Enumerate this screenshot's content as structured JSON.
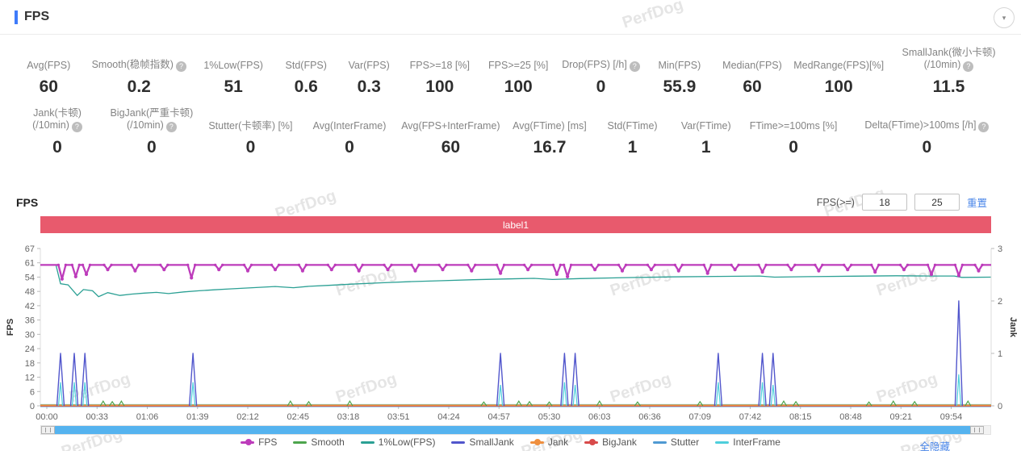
{
  "header": {
    "title": "FPS"
  },
  "stats_row1": [
    {
      "label": "Avg(FPS)",
      "value": "60",
      "help": false
    },
    {
      "label": "Smooth(稳帧指数)",
      "value": "0.2",
      "help": true
    },
    {
      "label": "1%Low(FPS)",
      "value": "51",
      "help": false
    },
    {
      "label": "Std(FPS)",
      "value": "0.6",
      "help": false
    },
    {
      "label": "Var(FPS)",
      "value": "0.3",
      "help": false
    },
    {
      "label": "FPS>=18 [%]",
      "value": "100",
      "help": false
    },
    {
      "label": "FPS>=25 [%]",
      "value": "100",
      "help": false
    },
    {
      "label": "Drop(FPS) [/h]",
      "value": "0",
      "help": true
    },
    {
      "label": "Min(FPS)",
      "value": "55.9",
      "help": false
    },
    {
      "label": "Median(FPS)",
      "value": "60",
      "help": false
    },
    {
      "label": "MedRange(FPS)[%]",
      "value": "100",
      "help": false
    },
    {
      "label": "SmallJank(微小卡顿)\n(/10min)",
      "value": "11.5",
      "help": true
    }
  ],
  "stats_row2": [
    {
      "label": "Jank(卡顿)\n(/10min)",
      "value": "0",
      "help": true
    },
    {
      "label": "BigJank(严重卡顿)\n(/10min)",
      "value": "0",
      "help": true
    },
    {
      "label": "Stutter(卡顿率) [%]",
      "value": "0",
      "help": false
    },
    {
      "label": "Avg(InterFrame)",
      "value": "0",
      "help": false
    },
    {
      "label": "Avg(FPS+InterFrame)",
      "value": "60",
      "help": false
    },
    {
      "label": "Avg(FTime) [ms]",
      "value": "16.7",
      "help": false
    },
    {
      "label": "Std(FTime)",
      "value": "1",
      "help": false
    },
    {
      "label": "Var(FTime)",
      "value": "1",
      "help": false
    },
    {
      "label": "FTime>=100ms [%]",
      "value": "0",
      "help": false
    },
    {
      "label": "Delta(FTime)>100ms [/h]",
      "value": "0",
      "help": true
    }
  ],
  "chart_controls": {
    "section_title": "FPS",
    "fps_ge_label": "FPS(>=)",
    "input1": "18",
    "input2": "25",
    "reset_label": "重置"
  },
  "banner": {
    "text": "label1",
    "color": "#e85a6d"
  },
  "footer": {
    "hide_all": "全隐藏"
  },
  "watermark_text": "PerfDog",
  "chart_data": {
    "type": "line",
    "title": "FPS",
    "x_axis": {
      "tick_labels": [
        "00:00",
        "00:33",
        "01:06",
        "01:39",
        "02:12",
        "02:45",
        "03:18",
        "03:51",
        "04:24",
        "04:57",
        "05:30",
        "06:03",
        "06:36",
        "07:09",
        "07:42",
        "08:15",
        "08:48",
        "09:21",
        "09:54"
      ],
      "tick_interval_seconds": 33,
      "t_max_seconds": 620
    },
    "left_axis": {
      "label": "FPS",
      "tick_labels": [
        67,
        61,
        54,
        48,
        42,
        36,
        30,
        24,
        18,
        12,
        6,
        0
      ],
      "range": [
        0,
        67
      ]
    },
    "right_axis": {
      "label": "Jank",
      "tick_labels": [
        3,
        2,
        1,
        0
      ],
      "range": [
        0,
        3
      ]
    },
    "grid": false,
    "legend_position": "bottom",
    "series": [
      {
        "name": "FPS",
        "color": "#bd3cbb",
        "axis": "left",
        "baseline": 60,
        "dips": [
          [
            10,
            54
          ],
          [
            19,
            55
          ],
          [
            26,
            56
          ],
          [
            40,
            58
          ],
          [
            58,
            57.5
          ],
          [
            77,
            58
          ],
          [
            95,
            54.5
          ],
          [
            113,
            58
          ],
          [
            132,
            57.5
          ],
          [
            150,
            58
          ],
          [
            168,
            57.5
          ],
          [
            187,
            58
          ],
          [
            205,
            57.5
          ],
          [
            224,
            58
          ],
          [
            242,
            57.5
          ],
          [
            260,
            58
          ],
          [
            279,
            57.5
          ],
          [
            298,
            56.5
          ],
          [
            316,
            58
          ],
          [
            335,
            56
          ],
          [
            342,
            55
          ],
          [
            360,
            58
          ],
          [
            378,
            57.5
          ],
          [
            397,
            58
          ],
          [
            415,
            57.5
          ],
          [
            434,
            56.5
          ],
          [
            452,
            58
          ],
          [
            470,
            57
          ],
          [
            489,
            58
          ],
          [
            507,
            57.5
          ],
          [
            526,
            58
          ],
          [
            544,
            57
          ],
          [
            563,
            58
          ],
          [
            581,
            56
          ],
          [
            599,
            55.5
          ],
          [
            612,
            57.5
          ]
        ]
      },
      {
        "name": "Smooth",
        "color": "#4da54d",
        "axis": "left",
        "spikes": [
          [
            37,
            2
          ],
          [
            43,
            1.8
          ],
          [
            49,
            2
          ],
          [
            160,
            2
          ],
          [
            172,
            1.8
          ],
          [
            199,
            2
          ],
          [
            287,
            1.6
          ],
          [
            310,
            2
          ],
          [
            317,
            1.8
          ],
          [
            330,
            1.6
          ],
          [
            363,
            2
          ],
          [
            388,
            1.6
          ],
          [
            429,
            1.8
          ],
          [
            484,
            2
          ],
          [
            492,
            1.8
          ],
          [
            540,
            1.6
          ],
          [
            556,
            2
          ],
          [
            570,
            1.8
          ],
          [
            605,
            2
          ]
        ]
      },
      {
        "name": "1%Low(FPS)",
        "color": "#2ba094",
        "axis": "left",
        "points": [
          [
            0,
            60
          ],
          [
            6,
            60
          ],
          [
            9,
            52
          ],
          [
            14,
            51.5
          ],
          [
            20,
            47
          ],
          [
            24,
            49.5
          ],
          [
            30,
            49
          ],
          [
            34,
            46.5
          ],
          [
            40,
            48.2
          ],
          [
            48,
            47
          ],
          [
            56,
            47.6
          ],
          [
            64,
            48
          ],
          [
            72,
            48.3
          ],
          [
            80,
            47.8
          ],
          [
            90,
            48.5
          ],
          [
            100,
            49
          ],
          [
            110,
            49.4
          ],
          [
            120,
            49.8
          ],
          [
            135,
            50.3
          ],
          [
            150,
            50.8
          ],
          [
            162,
            50.3
          ],
          [
            172,
            50.9
          ],
          [
            185,
            51.3
          ],
          [
            200,
            51.8
          ],
          [
            220,
            52.4
          ],
          [
            240,
            52.9
          ],
          [
            260,
            53.3
          ],
          [
            280,
            53.7
          ],
          [
            300,
            54
          ],
          [
            320,
            54.3
          ],
          [
            332,
            53.8
          ],
          [
            350,
            54.2
          ],
          [
            380,
            54.6
          ],
          [
            410,
            54.9
          ],
          [
            440,
            55.1
          ],
          [
            468,
            55.3
          ],
          [
            478,
            54.8
          ],
          [
            500,
            55
          ],
          [
            530,
            55.2
          ],
          [
            558,
            55.4
          ],
          [
            580,
            55.3
          ],
          [
            596,
            55.3
          ],
          [
            601,
            54.7
          ],
          [
            620,
            54.8
          ]
        ]
      },
      {
        "name": "SmallJank",
        "color": "#5156cc",
        "axis": "right",
        "spikes": [
          [
            9,
            1
          ],
          [
            18,
            1
          ],
          [
            25,
            1
          ],
          [
            96,
            1
          ],
          [
            298,
            1
          ],
          [
            340,
            1
          ],
          [
            347,
            1
          ],
          [
            441,
            1
          ],
          [
            470,
            1
          ],
          [
            477,
            1
          ],
          [
            599,
            2
          ]
        ]
      },
      {
        "name": "Jank",
        "color": "#ef8f3e",
        "axis": "right",
        "constant": 0
      },
      {
        "name": "BigJank",
        "color": "#d84b4b",
        "axis": "right",
        "constant": 0
      },
      {
        "name": "Stutter",
        "color": "#4f9ad2",
        "axis": "right",
        "constant": 0
      },
      {
        "name": "InterFrame",
        "color": "#4ecfdc",
        "axis": "right",
        "constant": 0,
        "spikes": [
          [
            9,
            0.45
          ],
          [
            18,
            0.45
          ],
          [
            25,
            0.45
          ],
          [
            96,
            0.45
          ],
          [
            298,
            0.4
          ],
          [
            340,
            0.45
          ],
          [
            347,
            0.4
          ],
          [
            441,
            0.45
          ],
          [
            470,
            0.45
          ],
          [
            477,
            0.4
          ],
          [
            599,
            0.6
          ]
        ]
      }
    ]
  },
  "legend": [
    {
      "label": "FPS",
      "color": "#bd3cbb",
      "dot": true
    },
    {
      "label": "Smooth",
      "color": "#4da54d",
      "dot": false
    },
    {
      "label": "1%Low(FPS)",
      "color": "#2ba094",
      "dot": false
    },
    {
      "label": "SmallJank",
      "color": "#5156cc",
      "dot": false
    },
    {
      "label": "Jank",
      "color": "#ef8f3e",
      "dot": true
    },
    {
      "label": "BigJank",
      "color": "#d84b4b",
      "dot": true
    },
    {
      "label": "Stutter",
      "color": "#4f9ad2",
      "dot": false
    },
    {
      "label": "InterFrame",
      "color": "#4ecfdc",
      "dot": false
    }
  ]
}
